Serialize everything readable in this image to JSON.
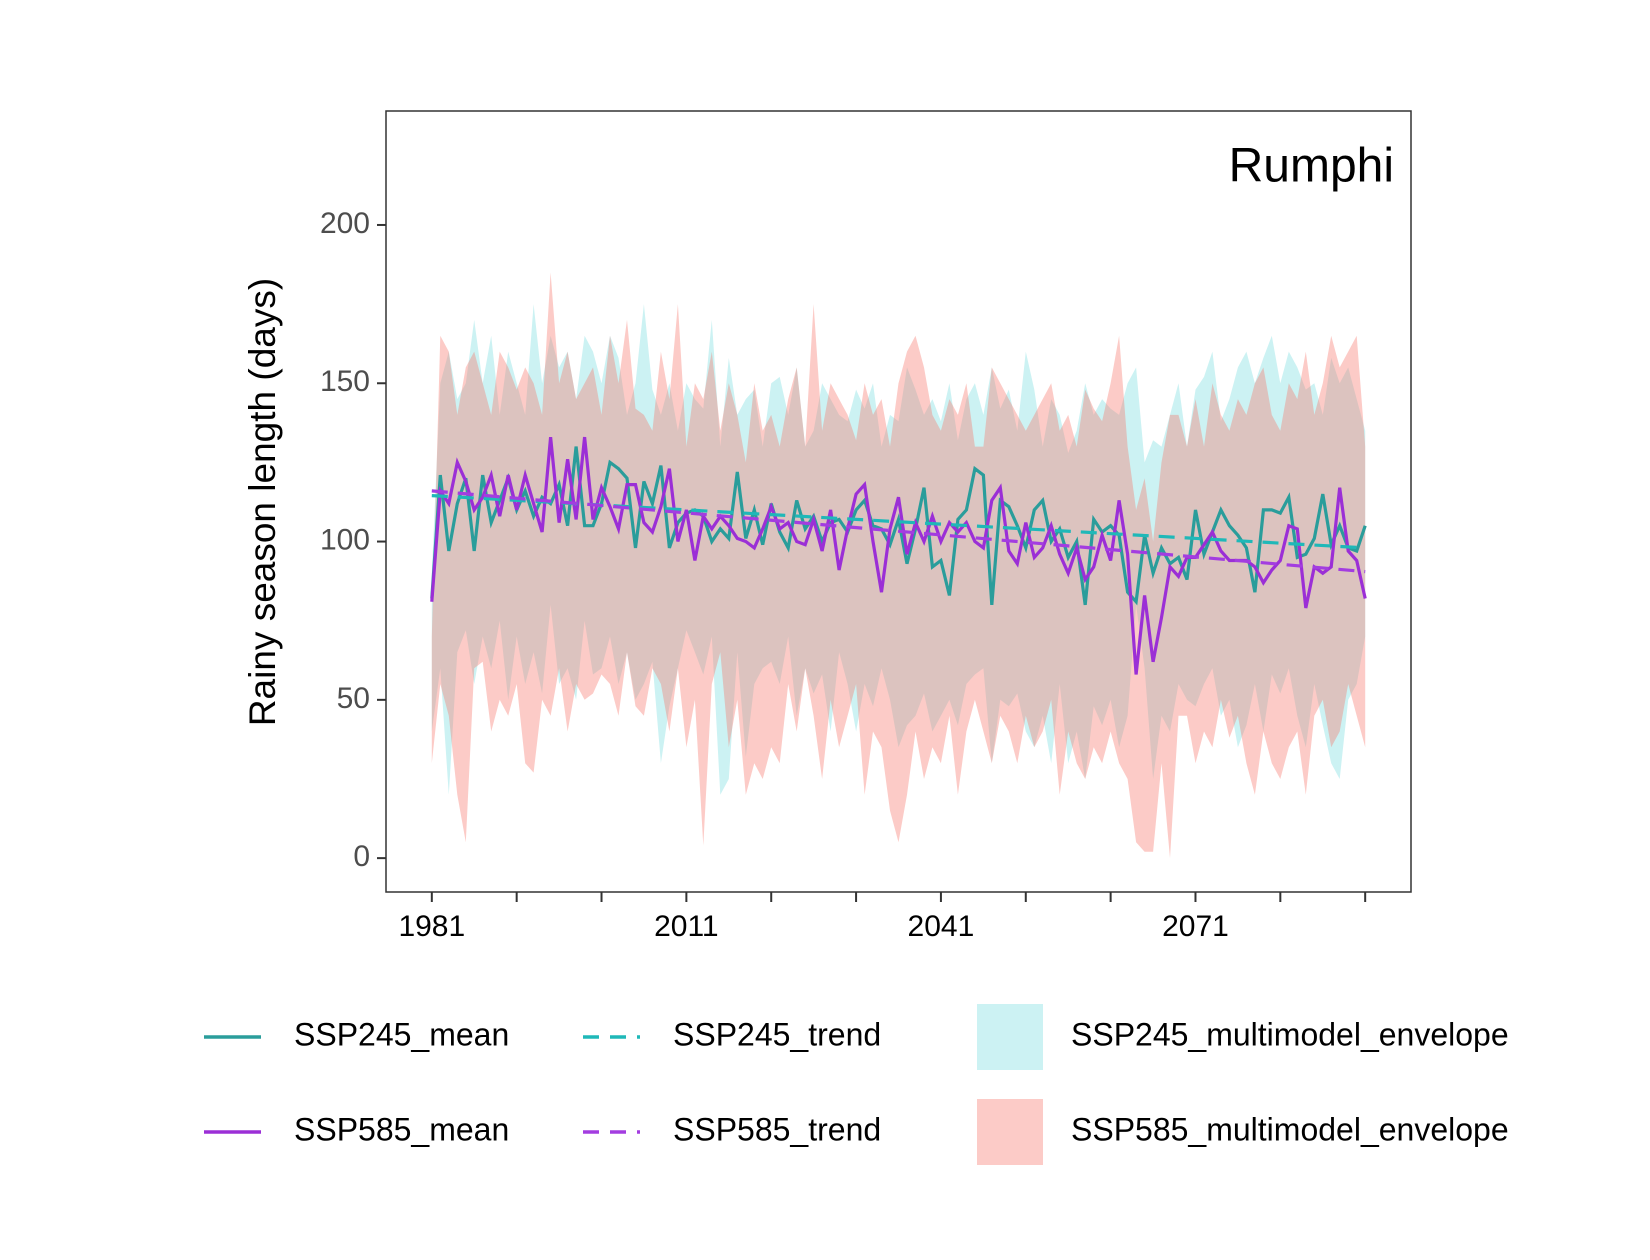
{
  "chart_data": {
    "type": "line",
    "title": "Rumphi",
    "ylabel": "Rainy season length (days)",
    "xlim": [
      1975.6,
      2096.4
    ],
    "ylim": [
      -10.7,
      236
    ],
    "xticks": [
      1981,
      2011,
      2041,
      2071
    ],
    "xminor_ticks": [
      1991,
      2001,
      2021,
      2031,
      2051,
      2061,
      2081,
      2091
    ],
    "yticks": [
      0,
      50,
      100,
      150,
      200
    ],
    "x": [
      1981,
      1982,
      1983,
      1984,
      1985,
      1986,
      1987,
      1988,
      1989,
      1990,
      1991,
      1992,
      1993,
      1994,
      1995,
      1996,
      1997,
      1998,
      1999,
      2000,
      2001,
      2002,
      2003,
      2004,
      2005,
      2006,
      2007,
      2008,
      2009,
      2010,
      2011,
      2012,
      2013,
      2014,
      2015,
      2016,
      2017,
      2018,
      2019,
      2020,
      2021,
      2022,
      2023,
      2024,
      2025,
      2026,
      2027,
      2028,
      2029,
      2030,
      2031,
      2032,
      2033,
      2034,
      2035,
      2036,
      2037,
      2038,
      2039,
      2040,
      2041,
      2042,
      2043,
      2044,
      2045,
      2046,
      2047,
      2048,
      2049,
      2050,
      2051,
      2052,
      2053,
      2054,
      2055,
      2056,
      2057,
      2058,
      2059,
      2060,
      2061,
      2062,
      2063,
      2064,
      2065,
      2066,
      2067,
      2068,
      2069,
      2070,
      2071,
      2072,
      2073,
      2074,
      2075,
      2076,
      2077,
      2078,
      2079,
      2080,
      2081,
      2082,
      2083,
      2084,
      2085,
      2086,
      2087,
      2088,
      2089,
      2090,
      2091
    ],
    "series": [
      {
        "name": "SSP245_mean",
        "kind": "line",
        "color": "#2a9d9b",
        "values": [
          82,
          121,
          97,
          112,
          120,
          97,
          121,
          106,
          113,
          120,
          110,
          116,
          108,
          114,
          112,
          118,
          105,
          130,
          105,
          105,
          112,
          125,
          123,
          120,
          98,
          119,
          112,
          124,
          98,
          106,
          109,
          110,
          108,
          100,
          104,
          101,
          122,
          101,
          110,
          99,
          112,
          103,
          98,
          113,
          104,
          108,
          100,
          106,
          107,
          103,
          110,
          113,
          105,
          104,
          99,
          107,
          93,
          104,
          117,
          92,
          94,
          83,
          107,
          110,
          123,
          121,
          80,
          113,
          111,
          105,
          98,
          110,
          113,
          100,
          104,
          95,
          100,
          80,
          107,
          103,
          105,
          102,
          84,
          81,
          102,
          90,
          98,
          93,
          95,
          88,
          110,
          96,
          103,
          110,
          105,
          102,
          98,
          84,
          110,
          110,
          109,
          114,
          95,
          96,
          101,
          115,
          99,
          105,
          98,
          97,
          105
        ]
      },
      {
        "name": "SSP585_mean",
        "kind": "line",
        "color": "#9b2fd6",
        "values": [
          81,
          116,
          112,
          125,
          119,
          110,
          114,
          121,
          108,
          121,
          110,
          121,
          112,
          103,
          133,
          106,
          126,
          107,
          133,
          107,
          117,
          111,
          104,
          118,
          118,
          106,
          103,
          111,
          123,
          100,
          110,
          94,
          108,
          104,
          108,
          105,
          101,
          100,
          98,
          104,
          111,
          104,
          106,
          100,
          99,
          107,
          97,
          110,
          91,
          104,
          115,
          118,
          100,
          84,
          104,
          114,
          96,
          106,
          100,
          108,
          100,
          106,
          103,
          106,
          100,
          98,
          113,
          117,
          97,
          93,
          106,
          95,
          98,
          105,
          96,
          90,
          98,
          88,
          92,
          102,
          94,
          113,
          96,
          58,
          83,
          62,
          76,
          92,
          89,
          95,
          95,
          99,
          103,
          97,
          94,
          94,
          94,
          92,
          87,
          91,
          94,
          105,
          104,
          79,
          92,
          90,
          92,
          117,
          97,
          94,
          82
        ]
      },
      {
        "name": "SSP245_trend",
        "kind": "trend",
        "color": "#1fb8b8",
        "x": [
          1981,
          2091
        ],
        "values": [
          114.5,
          98
        ]
      },
      {
        "name": "SSP585_trend",
        "kind": "trend",
        "color": "#a33de0",
        "x": [
          1981,
          2091
        ],
        "values": [
          116,
          90.5
        ]
      },
      {
        "name": "SSP245_multimodel_envelope",
        "kind": "band",
        "color": "#00bfc4",
        "lower": [
          40,
          60,
          20,
          65,
          72,
          55,
          70,
          60,
          75,
          50,
          70,
          55,
          65,
          52,
          80,
          55,
          60,
          50,
          75,
          58,
          60,
          70,
          55,
          65,
          50,
          55,
          62,
          30,
          48,
          60,
          72,
          65,
          58,
          70,
          20,
          25,
          65,
          32,
          55,
          60,
          62,
          55,
          70,
          45,
          60,
          52,
          58,
          40,
          65,
          55,
          40,
          55,
          48,
          60,
          50,
          35,
          42,
          45,
          52,
          40,
          45,
          50,
          42,
          55,
          58,
          60,
          30,
          50,
          48,
          52,
          40,
          35,
          45,
          30,
          55,
          30,
          40,
          25,
          48,
          42,
          50,
          35,
          45,
          80,
          60,
          25,
          45,
          40,
          55,
          50,
          48,
          55,
          60,
          45,
          50,
          35,
          42,
          55,
          40,
          58,
          52,
          60,
          45,
          35,
          55,
          42,
          30,
          25,
          50,
          55,
          70
        ],
        "upper": [
          90,
          150,
          160,
          145,
          150,
          170,
          150,
          165,
          140,
          160,
          150,
          140,
          175,
          150,
          165,
          155,
          160,
          145,
          165,
          160,
          150,
          165,
          158,
          140,
          150,
          175,
          148,
          140,
          150,
          135,
          150,
          145,
          142,
          170,
          130,
          158,
          140,
          145,
          148,
          130,
          150,
          152,
          140,
          155,
          130,
          135,
          150,
          145,
          140,
          138,
          148,
          142,
          150,
          130,
          140,
          138,
          155,
          148,
          140,
          145,
          138,
          150,
          132,
          145,
          150,
          140,
          155,
          142,
          148,
          135,
          160,
          148,
          130,
          145,
          140,
          128,
          135,
          150,
          140,
          145,
          142,
          140,
          150,
          155,
          125,
          132,
          130,
          140,
          150,
          130,
          148,
          152,
          160,
          138,
          145,
          155,
          160,
          150,
          158,
          165,
          150,
          160,
          155,
          148,
          150,
          140,
          158,
          150,
          155,
          145,
          135
        ]
      },
      {
        "name": "SSP585_multimodel_envelope",
        "kind": "band",
        "color": "#f8766d",
        "lower": [
          30,
          55,
          45,
          20,
          5,
          60,
          62,
          40,
          50,
          45,
          55,
          30,
          27,
          50,
          45,
          60,
          40,
          55,
          50,
          52,
          58,
          55,
          45,
          65,
          48,
          45,
          60,
          55,
          40,
          60,
          35,
          50,
          4,
          55,
          65,
          35,
          50,
          20,
          30,
          25,
          35,
          30,
          55,
          40,
          60,
          45,
          25,
          50,
          35,
          45,
          55,
          20,
          40,
          35,
          15,
          5,
          20,
          40,
          25,
          35,
          30,
          45,
          20,
          40,
          50,
          40,
          30,
          45,
          40,
          30,
          45,
          35,
          40,
          50,
          20,
          40,
          30,
          25,
          35,
          30,
          40,
          30,
          25,
          5,
          2,
          2,
          30,
          0,
          45,
          45,
          30,
          40,
          35,
          50,
          38,
          45,
          30,
          20,
          40,
          30,
          25,
          35,
          40,
          20,
          45,
          50,
          35,
          40,
          55,
          45,
          35
        ],
        "upper": [
          70,
          165,
          160,
          140,
          155,
          160,
          150,
          140,
          160,
          155,
          148,
          155,
          150,
          140,
          185,
          150,
          160,
          145,
          150,
          155,
          140,
          165,
          150,
          170,
          142,
          140,
          135,
          160,
          145,
          175,
          130,
          150,
          145,
          160,
          135,
          150,
          140,
          125,
          150,
          135,
          140,
          130,
          145,
          155,
          130,
          175,
          135,
          150,
          145,
          140,
          132,
          150,
          140,
          145,
          130,
          150,
          160,
          165,
          155,
          140,
          135,
          145,
          140,
          150,
          130,
          130,
          155,
          150,
          145,
          140,
          135,
          140,
          145,
          150,
          135,
          140,
          130,
          148,
          142,
          138,
          150,
          165,
          130,
          110,
          120,
          100,
          125,
          140,
          140,
          130,
          145,
          130,
          150,
          140,
          135,
          145,
          140,
          150,
          155,
          140,
          135,
          150,
          145,
          160,
          140,
          150,
          165,
          155,
          160,
          165,
          130
        ]
      }
    ]
  }
}
